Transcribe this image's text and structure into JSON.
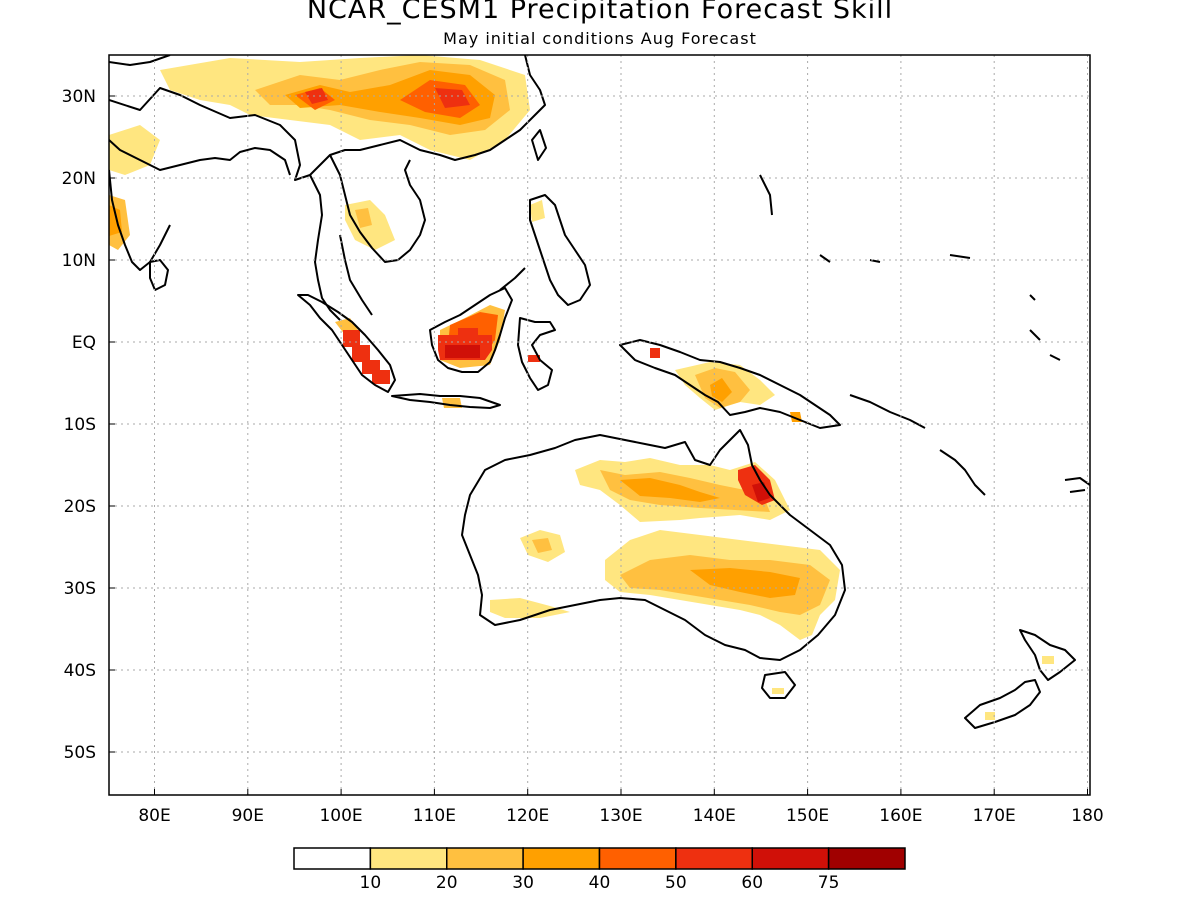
{
  "title": "NCAR_CESM1 Precipitation Forecast Skill",
  "subtitle": "May initial conditions  Aug Forecast",
  "x_ticks": [
    "80E",
    "90E",
    "100E",
    "110E",
    "120E",
    "130E",
    "140E",
    "150E",
    "160E",
    "170E",
    "180"
  ],
  "y_ticks": [
    "30N",
    "20N",
    "10N",
    "EQ",
    "10S",
    "20S",
    "30S",
    "40S",
    "50S"
  ],
  "colorbar": {
    "colors": [
      "#ffffff",
      "#ffe680",
      "#ffc040",
      "#ffa000",
      "#ff6000",
      "#ee3010",
      "#d01008",
      "#a00000"
    ],
    "labels": [
      "10",
      "20",
      "30",
      "40",
      "50",
      "60",
      "75"
    ]
  },
  "colors": {
    "land_outline": "#000000",
    "grid": "#aaaaaa"
  }
}
